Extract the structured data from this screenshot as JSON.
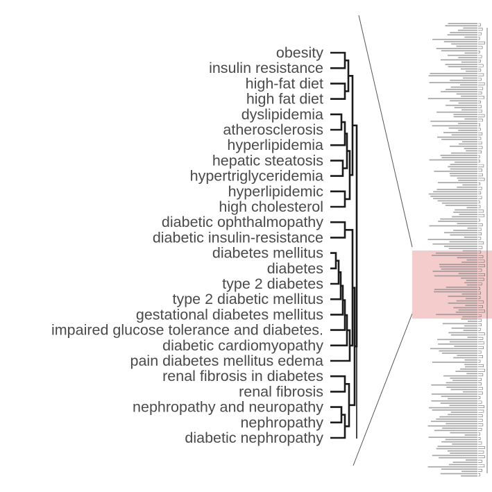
{
  "dendrogram": {
    "leaves": [
      "obesity",
      "insulin resistance",
      "high-fat diet",
      "high fat diet",
      "dyslipidemia",
      "atherosclerosis",
      "hyperlipidemia",
      "hepatic steatosis",
      "hypertriglyceridemia",
      "hyperlipidemic",
      "high cholesterol",
      "diabetic ophthalmopathy",
      "diabetic insulin-resistance",
      "diabetes mellitus",
      "diabetes",
      "type 2 diabetes",
      "type 2 diabetic mellitus",
      "gestational diabetes mellitus",
      "impaired glucose tolerance and diabetes.",
      "diabetic cardiomyopathy",
      "pain diabetes mellitus edema",
      "renal fibrosis in diabetes",
      "renal fibrosis",
      "nephropathy and neuropathy",
      "nephropathy",
      "diabetic nephropathy"
    ],
    "line_color": "#1a1a1a",
    "label_color": "#4a4a4a",
    "highlight_color": "#f4cccc"
  },
  "overview": {
    "label_count": 200,
    "label_color": "#8a8a8a"
  }
}
